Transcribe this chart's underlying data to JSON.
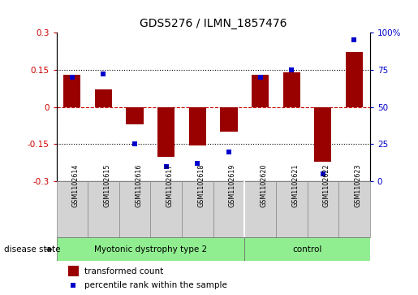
{
  "title": "GDS5276 / ILMN_1857476",
  "categories": [
    "GSM1102614",
    "GSM1102615",
    "GSM1102616",
    "GSM1102617",
    "GSM1102618",
    "GSM1102619",
    "GSM1102620",
    "GSM1102621",
    "GSM1102622",
    "GSM1102623"
  ],
  "bar_values": [
    0.13,
    0.07,
    -0.07,
    -0.2,
    -0.155,
    -0.1,
    0.13,
    0.14,
    -0.22,
    0.22
  ],
  "dot_values": [
    70,
    72,
    25,
    10,
    12,
    20,
    70,
    75,
    5,
    95
  ],
  "bar_color": "#990000",
  "dot_color": "#0000cc",
  "ylim_left": [
    -0.3,
    0.3
  ],
  "ylim_right": [
    0,
    100
  ],
  "yticks_left": [
    -0.3,
    -0.15,
    0.0,
    0.15,
    0.3
  ],
  "yticks_right": [
    0,
    25,
    50,
    75,
    100
  ],
  "ytick_labels_left": [
    "-0.3",
    "-0.15",
    "0",
    "0.15",
    "0.3"
  ],
  "ytick_labels_right": [
    "0",
    "25",
    "50",
    "75",
    "100%"
  ],
  "hline_dotted": [
    0.15,
    -0.15
  ],
  "hline_zero": 0.0,
  "group1_label": "Myotonic dystrophy type 2",
  "group1_count": 6,
  "group2_label": "control",
  "group2_count": 4,
  "group_color": "#90EE90",
  "sample_bg": "#d3d3d3",
  "disease_label": "disease state",
  "legend_bar_label": "transformed count",
  "legend_dot_label": "percentile rank within the sample",
  "bar_width": 0.55,
  "title_fontsize": 10,
  "tick_fontsize": 7.5,
  "label_fontsize": 7.5
}
